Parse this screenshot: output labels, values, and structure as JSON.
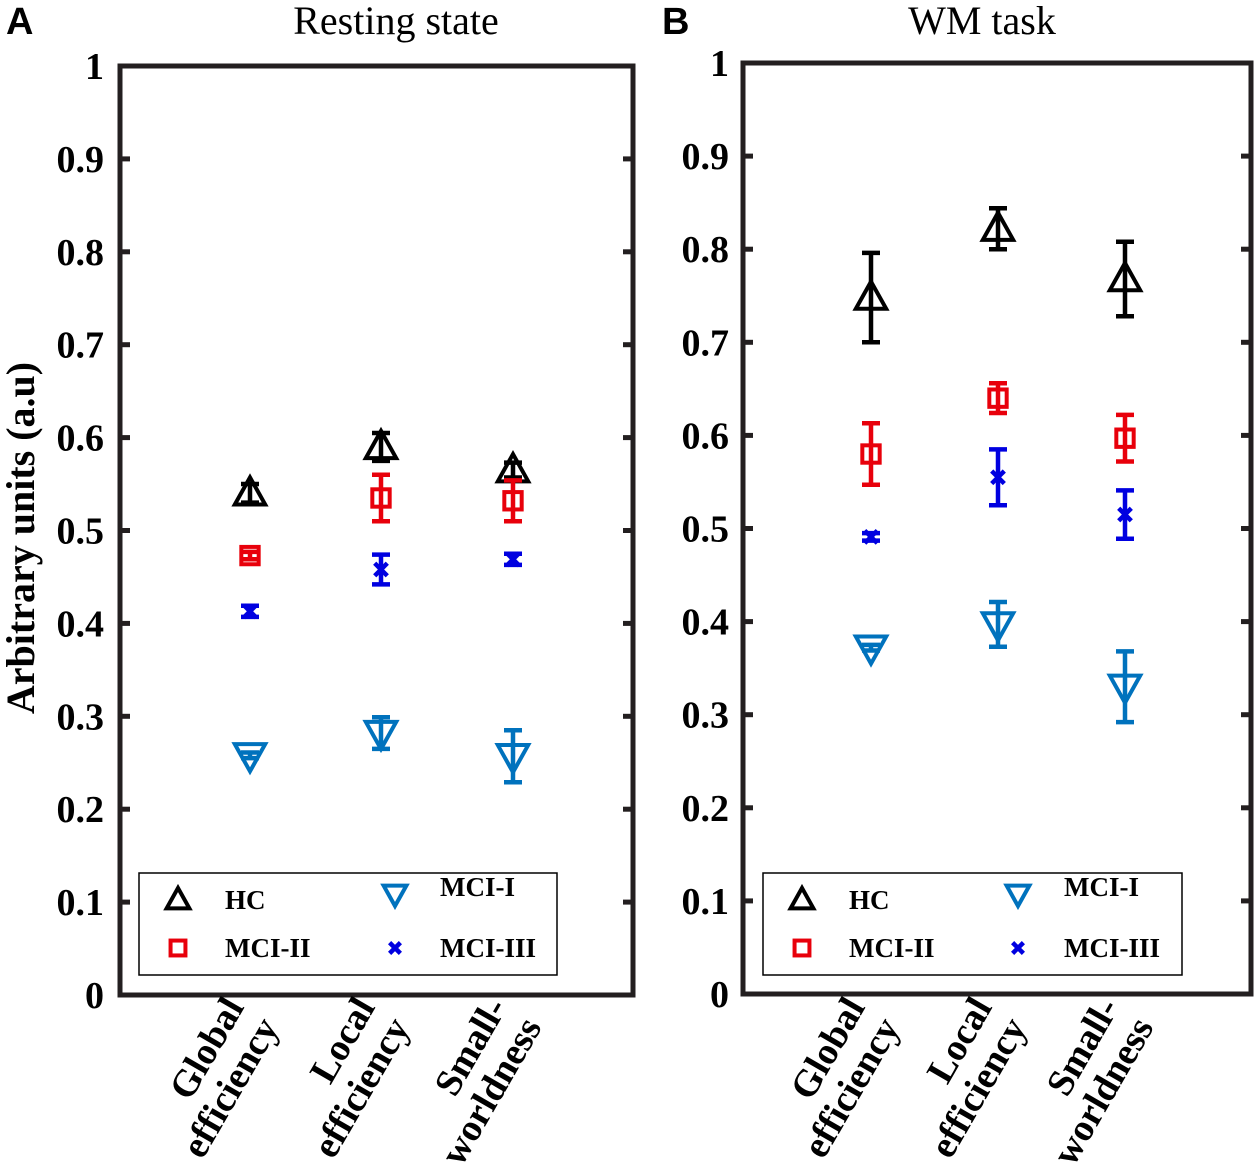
{
  "y_axis_label": "Arbitrary units (a.u)",
  "chart_data": [
    {
      "panel": "A",
      "type": "scatter",
      "title": "Resting state",
      "ylabel": "Arbitrary units (a.u)",
      "xlabel": "",
      "ylim": [
        0,
        1
      ],
      "yticks": [
        "0",
        "0.1",
        "0.2",
        "0.3",
        "0.4",
        "0.5",
        "0.6",
        "0.7",
        "0.8",
        "0.9",
        "1"
      ],
      "categories": [
        {
          "line1": "Global",
          "line2": "efficiency"
        },
        {
          "line1": "Local",
          "line2": "efficiency"
        },
        {
          "line1": "Small-",
          "line2": "worldness"
        }
      ],
      "series": [
        {
          "name": "HC",
          "color": "#000000",
          "marker": "triangle-up",
          "values": [
            0.54,
            0.59,
            0.565
          ],
          "err": [
            0.01,
            0.015,
            0.008
          ]
        },
        {
          "name": "MCI-II",
          "color": "#e8000b",
          "marker": "square",
          "values": [
            0.473,
            0.535,
            0.532
          ],
          "err": [
            0.004,
            0.025,
            0.022
          ]
        },
        {
          "name": "MCI-III",
          "color": "#0000e0",
          "marker": "x",
          "values": [
            0.413,
            0.458,
            0.469
          ],
          "err": [
            0.006,
            0.016,
            0.006
          ]
        },
        {
          "name": "MCI-I",
          "color": "#0072bd",
          "marker": "triangle-down",
          "values": [
            0.258,
            0.282,
            0.257
          ],
          "err": [
            0.003,
            0.017,
            0.028
          ]
        }
      ],
      "legend": {
        "location": "bottom",
        "entries": [
          "HC",
          "MCI-I",
          "MCI-II",
          "MCI-III"
        ]
      }
    },
    {
      "panel": "B",
      "type": "scatter",
      "title": "WM task",
      "ylabel": "",
      "xlabel": "",
      "ylim": [
        0,
        1
      ],
      "yticks": [
        "0",
        "0.1",
        "0.2",
        "0.3",
        "0.4",
        "0.5",
        "0.6",
        "0.7",
        "0.8",
        "0.9",
        "1"
      ],
      "categories": [
        {
          "line1": "Global",
          "line2": "efficiency"
        },
        {
          "line1": "Local",
          "line2": "efficiency"
        },
        {
          "line1": "Small-",
          "line2": "worldness"
        }
      ],
      "series": [
        {
          "name": "HC",
          "color": "#000000",
          "marker": "triangle-up",
          "values": [
            0.748,
            0.822,
            0.768
          ],
          "err": [
            0.048,
            0.022,
            0.04
          ]
        },
        {
          "name": "MCI-II",
          "color": "#e8000b",
          "marker": "square",
          "values": [
            0.58,
            0.64,
            0.597
          ],
          "err": [
            0.033,
            0.016,
            0.025
          ]
        },
        {
          "name": "MCI-III",
          "color": "#0000e0",
          "marker": "x",
          "values": [
            0.491,
            0.555,
            0.515
          ],
          "err": [
            0.004,
            0.03,
            0.026
          ]
        },
        {
          "name": "MCI-I",
          "color": "#0072bd",
          "marker": "triangle-down",
          "values": [
            0.372,
            0.397,
            0.33
          ],
          "err": [
            0.003,
            0.024,
            0.038
          ]
        }
      ],
      "legend": {
        "location": "bottom",
        "entries": [
          "HC",
          "MCI-I",
          "MCI-II",
          "MCI-III"
        ]
      }
    }
  ]
}
